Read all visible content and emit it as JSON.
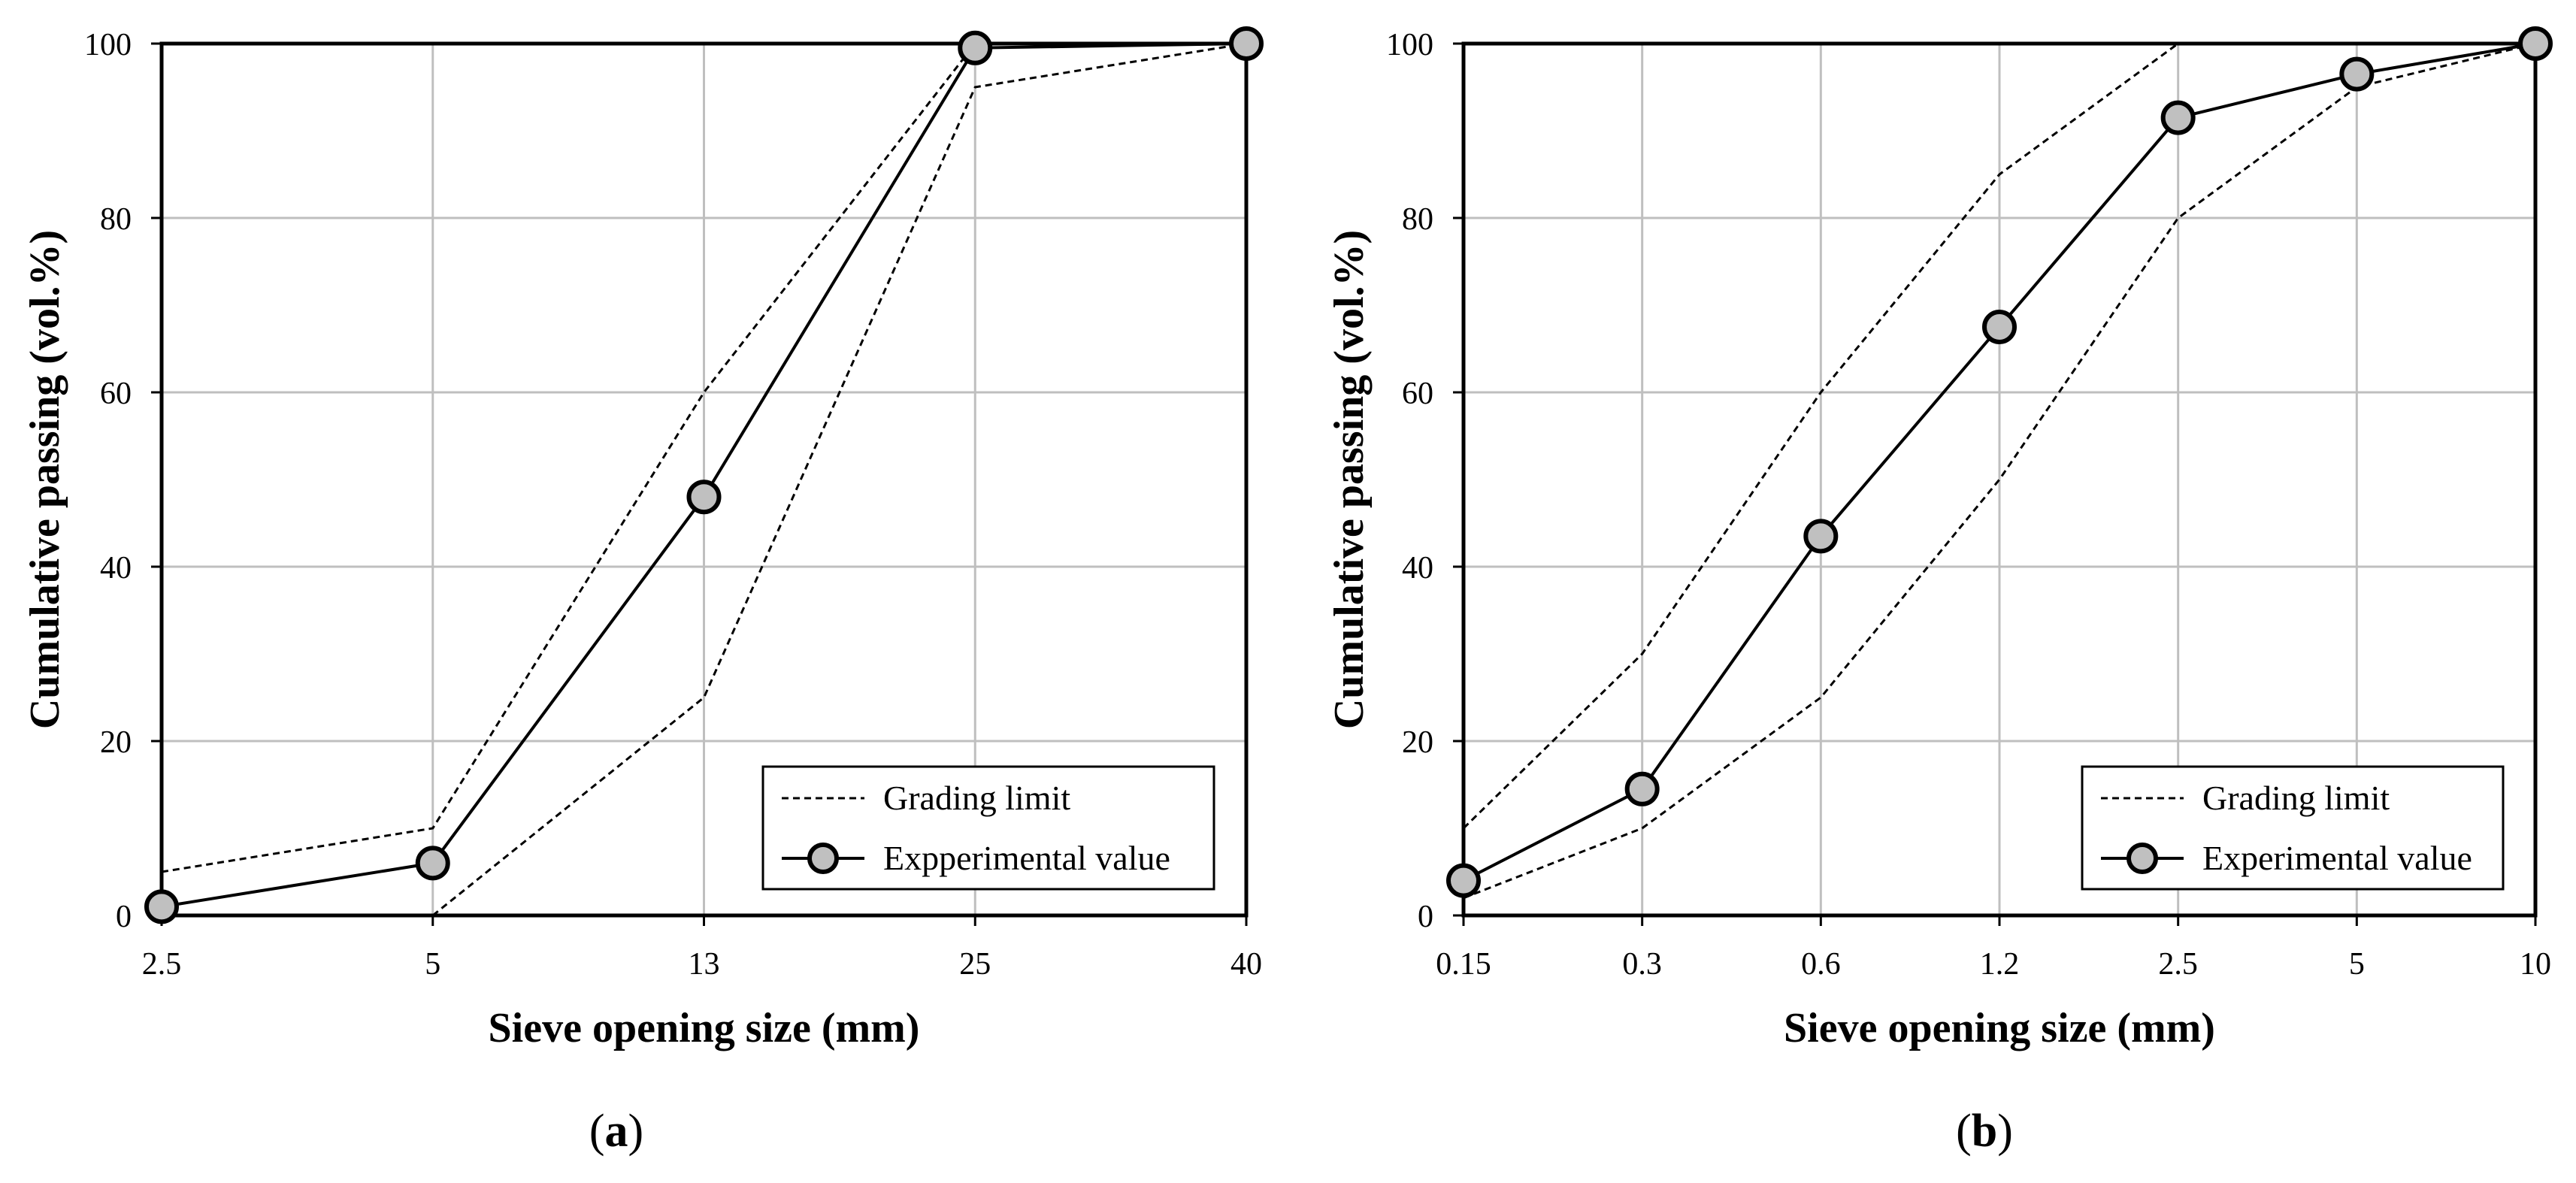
{
  "figure": {
    "colors": {
      "grid": "#bfbfbf",
      "axis": "#000000",
      "marker_fill": "#c0c0c0",
      "line": "#000000"
    }
  },
  "chart_data": [
    {
      "type": "line",
      "panel": "a",
      "panel_label": {
        "open": "(",
        "letter": "a",
        "close": ")"
      },
      "xlabel": "Sieve opening size (mm)",
      "ylabel": "Cumulative passing (vol.%)",
      "categories": [
        "2.5",
        "5",
        "13",
        "25",
        "40"
      ],
      "ylim": [
        0,
        100
      ],
      "yticks": [
        0,
        20,
        40,
        60,
        80,
        100
      ],
      "grid": true,
      "legend_position": "bottom-right",
      "series": [
        {
          "name": "Grading limit",
          "role": "upper",
          "style": "dashed",
          "values": [
            5,
            10,
            60,
            100,
            100
          ]
        },
        {
          "name": "Grading limit",
          "role": "lower",
          "style": "dashed",
          "values": [
            null,
            0,
            25,
            95,
            100
          ],
          "x_offsets": {
            "1": 0.0
          }
        },
        {
          "name": "Expperimental value",
          "style": "solid-marker",
          "values": [
            1,
            6,
            48,
            99.5,
            100
          ]
        }
      ],
      "legend": [
        {
          "label": "Grading limit",
          "style": "dashed"
        },
        {
          "label": "Expperimental value",
          "style": "solid-marker"
        }
      ]
    },
    {
      "type": "line",
      "panel": "b",
      "panel_label": {
        "open": "(",
        "letter": "b",
        "close": ")"
      },
      "xlabel": "Sieve opening size (mm)",
      "ylabel": "Cumulative passing (vol.%)",
      "categories": [
        "0.15",
        "0.3",
        "0.6",
        "1.2",
        "2.5",
        "5",
        "10"
      ],
      "ylim": [
        0,
        100
      ],
      "yticks": [
        0,
        20,
        40,
        60,
        80,
        100
      ],
      "grid": true,
      "legend_position": "bottom-right",
      "series": [
        {
          "name": "Grading limit",
          "role": "upper",
          "style": "dashed",
          "values": [
            10,
            30,
            60,
            85,
            100,
            null,
            null
          ]
        },
        {
          "name": "Grading limit",
          "role": "lower",
          "style": "dashed",
          "values": [
            2,
            10,
            25,
            50,
            80,
            95,
            100
          ]
        },
        {
          "name": "Experimental value",
          "style": "solid-marker",
          "values": [
            4,
            14.5,
            43.5,
            67.5,
            91.5,
            96.5,
            100
          ]
        }
      ],
      "legend": [
        {
          "label": "Grading limit",
          "style": "dashed"
        },
        {
          "label": "Experimental value",
          "style": "solid-marker"
        }
      ]
    }
  ]
}
